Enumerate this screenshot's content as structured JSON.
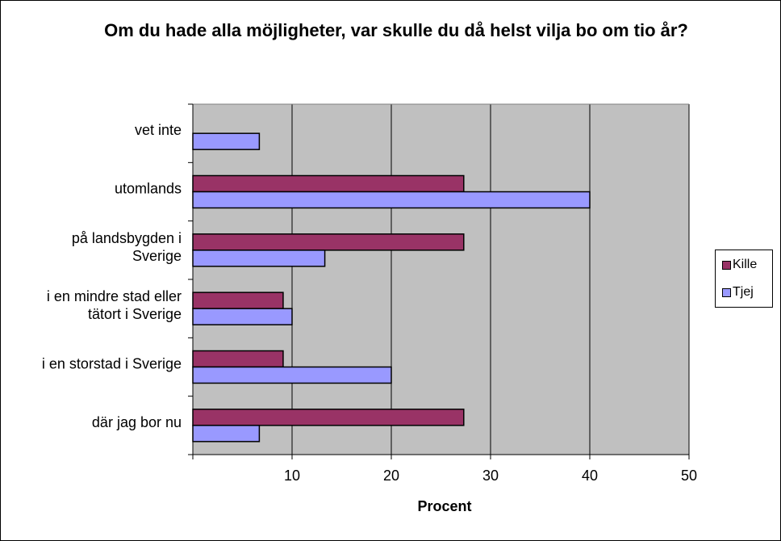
{
  "chart_data": {
    "type": "bar",
    "orientation": "horizontal",
    "title": "Om du hade alla möjligheter, var skulle du då helst vilja bo om tio år?",
    "xlabel": "Procent",
    "ylabel": "",
    "categories": [
      [
        "vet inte"
      ],
      [
        "utomlands"
      ],
      [
        "på landsbygden i",
        "Sverige"
      ],
      [
        "i en mindre stad eller",
        "tätort i Sverige"
      ],
      [
        "i en storstad i Sverige"
      ],
      [
        "där jag bor nu"
      ]
    ],
    "series": [
      {
        "name": "Kille",
        "color": "#993366",
        "values": [
          0,
          27.3,
          27.3,
          9.1,
          9.1,
          27.3
        ]
      },
      {
        "name": "Tjej",
        "color": "#9999ff",
        "values": [
          6.7,
          40,
          13.3,
          10,
          20,
          6.7
        ]
      }
    ],
    "xlim": [
      0,
      50
    ],
    "xticks": [
      10,
      20,
      30,
      40,
      50
    ],
    "grid": true,
    "plot_background": "#c0c0c0",
    "legend_position": "right"
  }
}
